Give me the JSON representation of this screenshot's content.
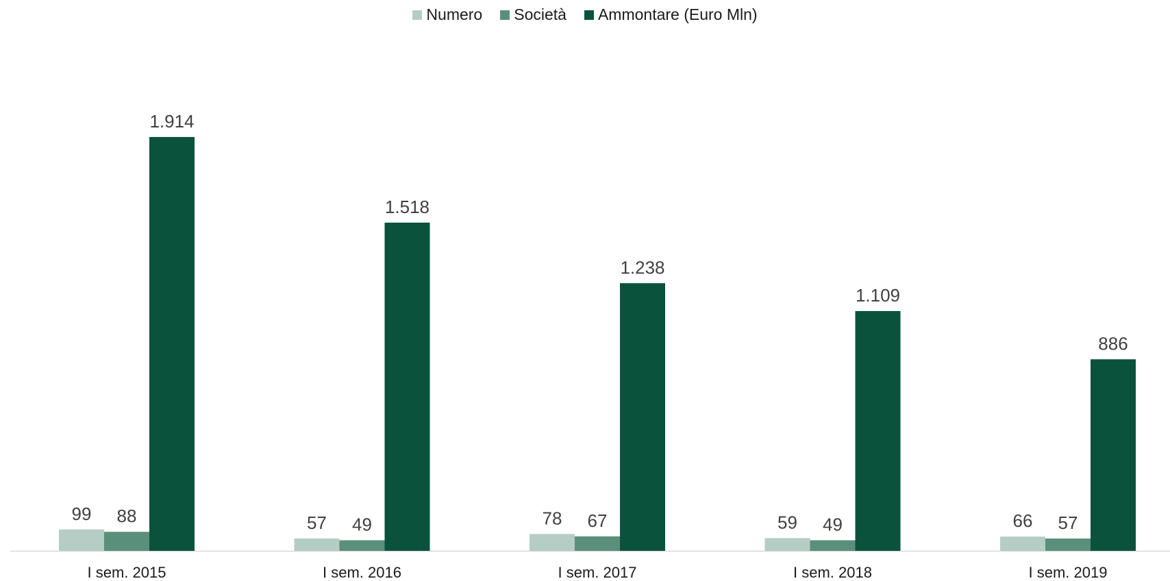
{
  "chart_data": {
    "type": "bar",
    "categories": [
      "I sem. 2015",
      "I sem. 2016",
      "I sem. 2017",
      "I sem. 2018",
      "I sem. 2019"
    ],
    "series": [
      {
        "name": "Numero",
        "color": "#b5cdc4",
        "values": [
          99,
          57,
          78,
          59,
          66
        ],
        "labels": [
          "99",
          "57",
          "78",
          "59",
          "66"
        ]
      },
      {
        "name": "Società",
        "color": "#5a8f7b",
        "values": [
          88,
          49,
          67,
          49,
          57
        ],
        "labels": [
          "88",
          "49",
          "67",
          "49",
          "57"
        ]
      },
      {
        "name": "Ammontare (Euro Mln)",
        "color": "#0b523c",
        "values": [
          1914,
          1518,
          1238,
          1109,
          886
        ],
        "labels": [
          "1.914",
          "1.518",
          "1.238",
          "1.109",
          "886"
        ]
      }
    ],
    "title": "",
    "xlabel": "",
    "ylabel": "",
    "ylim": [
      0,
      2000
    ],
    "grid": false,
    "legend_position": "top-center"
  }
}
